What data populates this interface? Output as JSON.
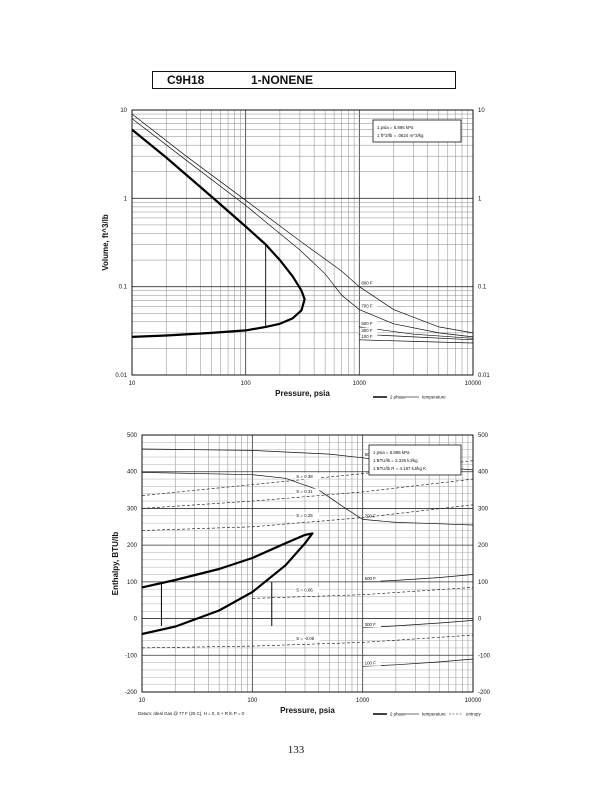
{
  "header": {
    "formula": "C9H18",
    "name": "1-NONENE"
  },
  "page_number": "133",
  "chart_data": [
    {
      "type": "line",
      "xscale": "log",
      "yscale": "log",
      "xlim": [
        10,
        10000
      ],
      "ylim": [
        0.01,
        10
      ],
      "xlabel": "Pressure,  psia",
      "ylabel": "Volume, ft^3/lb",
      "x_ticks": [
        "10",
        "100",
        "1000",
        "10000"
      ],
      "y_ticks_left": [
        "0.01",
        "0.1",
        "1",
        "10"
      ],
      "y_ticks_right": [
        "0.01",
        "0.1",
        "1",
        "10"
      ],
      "info_box": [
        "1 psia  =  6.895 kPa",
        "1 ft^3/lb  =  .0624 m^3/kg"
      ],
      "legend": [
        "2 phase",
        "temperature"
      ],
      "two_phase": {
        "name": "2 phase",
        "x": [
          10,
          20,
          50,
          100,
          150,
          200,
          260,
          310,
          330,
          310,
          260,
          200,
          150,
          100,
          50,
          20,
          10
        ],
        "y": [
          6.0,
          2.9,
          1.05,
          0.48,
          0.3,
          0.2,
          0.13,
          0.09,
          0.072,
          0.054,
          0.044,
          0.038,
          0.035,
          0.032,
          0.03,
          0.028,
          0.027
        ]
      },
      "isotherms": [
        {
          "label": "800 F",
          "x": [
            10,
            30,
            100,
            300,
            700,
            1000,
            2000,
            5000,
            10000
          ],
          "y": [
            9.0,
            3.0,
            0.95,
            0.33,
            0.15,
            0.1,
            0.055,
            0.035,
            0.03
          ]
        },
        {
          "label": "700 F",
          "x": [
            10,
            30,
            100,
            300,
            500,
            700,
            1000,
            2000,
            5000,
            10000
          ],
          "y": [
            8.0,
            2.7,
            0.83,
            0.26,
            0.14,
            0.08,
            0.055,
            0.038,
            0.03,
            0.027
          ]
        },
        {
          "label": "500 F",
          "x": [
            1000,
            3000,
            10000
          ],
          "y": [
            0.035,
            0.029,
            0.026
          ]
        },
        {
          "label": "300 F",
          "x": [
            1000,
            3000,
            10000
          ],
          "y": [
            0.029,
            0.027,
            0.025
          ]
        },
        {
          "label": "100 F",
          "x": [
            1000,
            3000,
            10000
          ],
          "y": [
            0.025,
            0.024,
            0.023
          ]
        }
      ]
    },
    {
      "type": "line",
      "xscale": "log",
      "yscale": "linear",
      "xlim": [
        10,
        10000
      ],
      "ylim": [
        -200,
        500
      ],
      "xlabel": "Pressure,  psia",
      "ylabel": "Enthalpy, BTU/lb",
      "x_ticks": [
        "10",
        "100",
        "1000",
        "10000"
      ],
      "y_ticks_left": [
        "-200",
        "-100",
        "0",
        "100",
        "200",
        "300",
        "400",
        "500"
      ],
      "y_ticks_right": [
        "-200",
        "-100",
        "0",
        "100",
        "200",
        "300",
        "400",
        "500"
      ],
      "info_box": [
        "1 psia  =  6.895 kPa",
        "1 BTU/lb  =  2.326 kJ/kg",
        "1 BTU/lb R  =  4.187 kJ/kg K"
      ],
      "footnote": "Datum: Ideal Gas @ 77 F (25 C),  H = 0,  S + R ln P = 0",
      "legend": [
        "2 phase",
        "temperature",
        "entropy"
      ],
      "two_phase": {
        "name": "2 phase",
        "x": [
          10,
          20,
          50,
          100,
          200,
          300,
          350,
          300,
          200,
          100,
          50,
          20,
          10
        ],
        "y": [
          85,
          105,
          135,
          165,
          205,
          228,
          232,
          205,
          145,
          72,
          22,
          -22,
          -42
        ]
      },
      "tie_lines": [
        15,
        150
      ],
      "isotherms": [
        {
          "label": "800 F",
          "x": [
            10,
            100,
            500,
            1000,
            2000,
            5000,
            10000
          ],
          "y": [
            462,
            458,
            448,
            438,
            425,
            412,
            405
          ]
        },
        {
          "label": "700 F",
          "x": [
            10,
            100,
            200,
            400,
            700,
            1000,
            2000,
            5000,
            10000
          ],
          "y": [
            398,
            392,
            382,
            350,
            300,
            270,
            262,
            258,
            255
          ]
        },
        {
          "label": "500 F",
          "x": [
            1000,
            2000,
            5000,
            10000
          ],
          "y": [
            100,
            104,
            112,
            120
          ]
        },
        {
          "label": "300 F",
          "x": [
            1000,
            2000,
            5000,
            10000
          ],
          "y": [
            -25,
            -20,
            -12,
            -5
          ]
        },
        {
          "label": "100 F",
          "x": [
            1000,
            2000,
            5000,
            10000
          ],
          "y": [
            -130,
            -126,
            -118,
            -110
          ]
        }
      ],
      "isentropes": [
        {
          "label": "S = 0.38",
          "x": [
            10,
            100,
            1000,
            10000
          ],
          "y": [
            335,
            365,
            395,
            430
          ]
        },
        {
          "label": "S = 0.31",
          "x": [
            10,
            100,
            1000,
            10000
          ],
          "y": [
            300,
            320,
            345,
            380
          ]
        },
        {
          "label": "S = 0.25",
          "x": [
            10,
            100,
            1000,
            10000
          ],
          "y": [
            240,
            250,
            275,
            310
          ]
        },
        {
          "label": "S = 0.06",
          "x": [
            100,
            1000,
            10000
          ],
          "y": [
            55,
            65,
            85
          ]
        },
        {
          "label": "S = -0.06",
          "x": [
            10,
            100,
            1000,
            10000
          ],
          "y": [
            -80,
            -75,
            -65,
            -45
          ]
        }
      ]
    }
  ]
}
